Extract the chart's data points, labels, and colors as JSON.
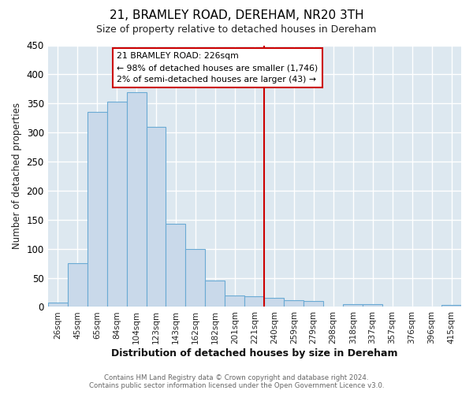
{
  "title": "21, BRAMLEY ROAD, DEREHAM, NR20 3TH",
  "subtitle": "Size of property relative to detached houses in Dereham",
  "xlabel": "Distribution of detached houses by size in Dereham",
  "ylabel": "Number of detached properties",
  "bar_labels": [
    "26sqm",
    "45sqm",
    "65sqm",
    "84sqm",
    "104sqm",
    "123sqm",
    "143sqm",
    "162sqm",
    "182sqm",
    "201sqm",
    "221sqm",
    "240sqm",
    "259sqm",
    "279sqm",
    "298sqm",
    "318sqm",
    "337sqm",
    "357sqm",
    "376sqm",
    "396sqm",
    "415sqm"
  ],
  "bar_heights": [
    7,
    75,
    335,
    353,
    369,
    310,
    143,
    99,
    46,
    20,
    18,
    15,
    11,
    10,
    0,
    5,
    5,
    1,
    1,
    0,
    3
  ],
  "bar_color": "#c9d9ea",
  "bar_edge_color": "#6aaad4",
  "vline_x": 10.5,
  "vline_color": "#cc0000",
  "annotation_title": "21 BRAMLEY ROAD: 226sqm",
  "annotation_line1": "← 98% of detached houses are smaller (1,746)",
  "annotation_line2": "2% of semi-detached houses are larger (43) →",
  "annotation_box_edgecolor": "#cc0000",
  "ylim": [
    0,
    450
  ],
  "yticks": [
    0,
    50,
    100,
    150,
    200,
    250,
    300,
    350,
    400,
    450
  ],
  "footer1": "Contains HM Land Registry data © Crown copyright and database right 2024.",
  "footer2": "Contains public sector information licensed under the Open Government Licence v3.0.",
  "fig_background_color": "#ffffff",
  "plot_background_color": "#dde8f0",
  "grid_color": "#ffffff"
}
